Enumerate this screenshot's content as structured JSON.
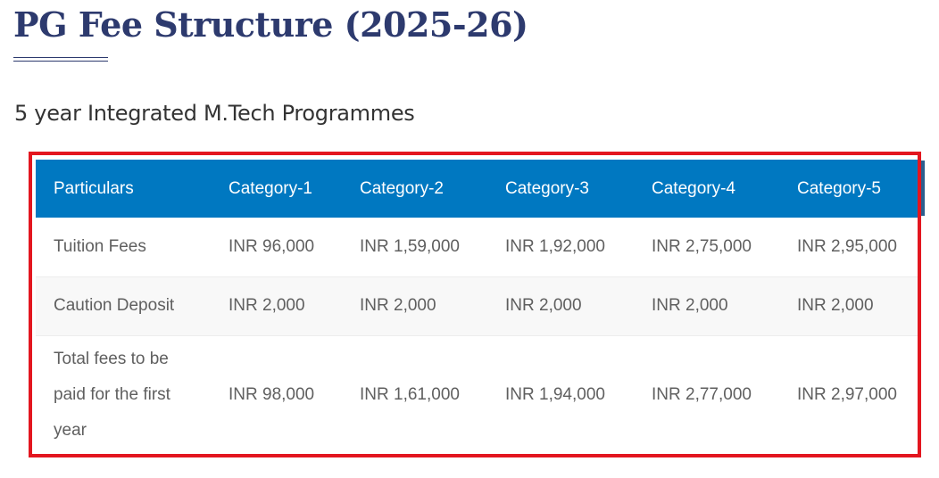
{
  "page": {
    "title": "PG Fee Structure (2025-26)",
    "section_heading": "5 year Integrated M.Tech Programmes"
  },
  "table": {
    "headers": [
      "Particulars",
      "Category-1",
      "Category-2",
      "Category-3",
      "Category-4",
      "Category-5"
    ],
    "rows": [
      [
        "Tuition Fees",
        "INR 96,000",
        "INR 1,59,000",
        "INR 1,92,000",
        "INR 2,75,000",
        "INR 2,95,000"
      ],
      [
        "Caution Deposit",
        "INR 2,000",
        "INR 2,000",
        "INR 2,000",
        "INR 2,000",
        "INR 2,000"
      ],
      [
        "Total fees to be paid for the first year",
        "INR 98,000",
        "INR 1,61,000",
        "INR 1,94,000",
        "INR 2,77,000",
        "INR 2,97,000"
      ]
    ]
  },
  "colors": {
    "title": "#2d3a6e",
    "header_background": "#0078c1",
    "highlight_border": "#e3161f",
    "body_text": "#5f5f5f"
  }
}
